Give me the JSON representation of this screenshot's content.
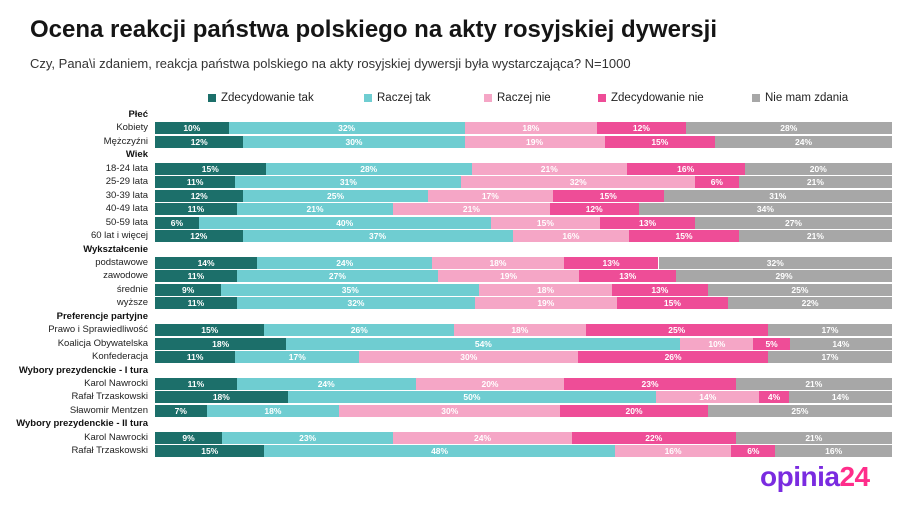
{
  "title": "Ocena reakcji państwa polskiego na akty rosyjskiej dywersji",
  "subtitle": "Czy, Pana\\i zdaniem, reakcja państwa polskiego na akty rosyjskiej dywersji była wystarczająca? N=1000",
  "logo": {
    "part1": "opinia",
    "part2": "24"
  },
  "colors": [
    "#1c6f6a",
    "#6fcdd1",
    "#f5a6c6",
    "#ee4d97",
    "#a7a7a7"
  ],
  "chart_data": {
    "type": "bar",
    "stacked": true,
    "orientation": "horizontal",
    "unit": "%",
    "title": "Ocena reakcji państwa polskiego na akty rosyjskiej dywersji",
    "series_names": [
      "Zdecydowanie tak",
      "Raczej tak",
      "Raczej nie",
      "Zdecydowanie nie",
      "Nie mam zdania"
    ],
    "groups": [
      {
        "label": "Płeć",
        "rows": [
          {
            "label": "Kobiety",
            "values": [
              10,
              32,
              18,
              12,
              28
            ]
          },
          {
            "label": "Mężczyźni",
            "values": [
              12,
              30,
              19,
              15,
              24
            ]
          }
        ]
      },
      {
        "label": "Wiek",
        "rows": [
          {
            "label": "18-24 lata",
            "values": [
              15,
              28,
              21,
              16,
              20
            ]
          },
          {
            "label": "25-29 lata",
            "values": [
              11,
              31,
              32,
              6,
              21
            ]
          },
          {
            "label": "30-39 lata",
            "values": [
              12,
              25,
              17,
              15,
              31
            ]
          },
          {
            "label": "40-49 lata",
            "values": [
              11,
              21,
              21,
              12,
              34
            ]
          },
          {
            "label": "50-59 lata",
            "values": [
              6,
              40,
              15,
              13,
              27
            ]
          },
          {
            "label": "60 lat i więcej",
            "values": [
              12,
              37,
              16,
              15,
              21
            ]
          }
        ]
      },
      {
        "label": "Wykształcenie",
        "rows": [
          {
            "label": "podstawowe",
            "values": [
              14,
              24,
              18,
              13,
              32
            ]
          },
          {
            "label": "zawodowe",
            "values": [
              11,
              27,
              19,
              13,
              29
            ]
          },
          {
            "label": "średnie",
            "values": [
              9,
              35,
              18,
              13,
              25
            ]
          },
          {
            "label": "wyższe",
            "values": [
              11,
              32,
              19,
              15,
              22
            ]
          }
        ]
      },
      {
        "label": "Preferencje partyjne",
        "rows": [
          {
            "label": "Prawo i Sprawiedliwość",
            "values": [
              15,
              26,
              18,
              25,
              17
            ]
          },
          {
            "label": "Koalicja Obywatelska",
            "values": [
              18,
              54,
              10,
              5,
              14
            ]
          },
          {
            "label": "Konfederacja",
            "values": [
              11,
              17,
              30,
              26,
              17
            ]
          }
        ]
      },
      {
        "label": "Wybory prezydenckie - I tura",
        "rows": [
          {
            "label": "Karol Nawrocki",
            "values": [
              11,
              24,
              20,
              23,
              21
            ]
          },
          {
            "label": "Rafał Trzaskowski",
            "values": [
              18,
              50,
              14,
              4,
              14
            ]
          },
          {
            "label": "Sławomir Mentzen",
            "values": [
              7,
              18,
              30,
              20,
              25
            ]
          }
        ]
      },
      {
        "label": "Wybory prezydenckie - II tura",
        "rows": [
          {
            "label": "Karol Nawrocki",
            "values": [
              9,
              23,
              24,
              22,
              21
            ]
          },
          {
            "label": "Rafał Trzaskowski",
            "values": [
              15,
              48,
              16,
              6,
              16
            ]
          }
        ]
      }
    ]
  }
}
